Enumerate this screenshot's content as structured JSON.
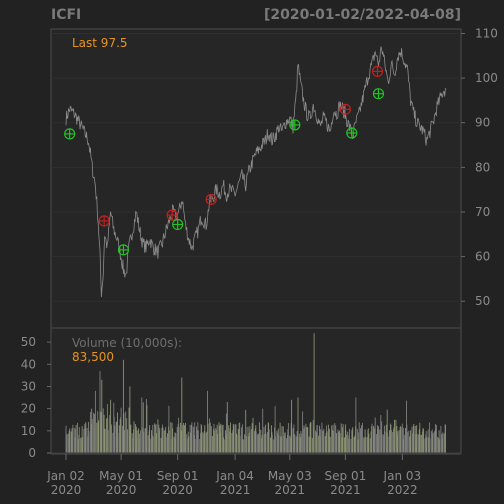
{
  "chart_data": {
    "type": "line",
    "title": "ICFI",
    "date_range": "[2020-01-02/2022-04-08]",
    "last_label": "Last 97.5",
    "price_axis": {
      "ylim": [
        44,
        111
      ],
      "ticks": [
        50,
        60,
        70,
        80,
        90,
        100,
        110
      ]
    },
    "volume_axis": {
      "label": "Volume (10,000s):",
      "last_value": "83,500",
      "ylim": [
        0,
        55
      ],
      "ticks": [
        0,
        10,
        20,
        30,
        40,
        50
      ]
    },
    "x_axis": {
      "start": "2020-01-02",
      "end": "2022-04-08",
      "ticks": [
        {
          "date": "2020-01-02",
          "line1": "Jan 02",
          "line2": "2020"
        },
        {
          "date": "2020-05-01",
          "line1": "May 01",
          "line2": "2020"
        },
        {
          "date": "2020-09-01",
          "line1": "Sep 01",
          "line2": "2020"
        },
        {
          "date": "2021-01-04",
          "line1": "Jan 04",
          "line2": "2021"
        },
        {
          "date": "2021-05-03",
          "line1": "May 03",
          "line2": "2021"
        },
        {
          "date": "2021-09-01",
          "line1": "Sep 01",
          "line2": "2021"
        },
        {
          "date": "2022-01-03",
          "line1": "Jan 03",
          "line2": "2022"
        }
      ]
    },
    "price_series": [
      [
        "2020-01-02",
        91
      ],
      [
        "2020-01-10",
        93
      ],
      [
        "2020-01-20",
        92
      ],
      [
        "2020-01-31",
        90
      ],
      [
        "2020-02-10",
        88
      ],
      [
        "2020-02-20",
        86
      ],
      [
        "2020-02-28",
        80
      ],
      [
        "2020-03-06",
        76
      ],
      [
        "2020-03-12",
        68
      ],
      [
        "2020-03-16",
        60
      ],
      [
        "2020-03-19",
        52
      ],
      [
        "2020-03-23",
        56
      ],
      [
        "2020-03-26",
        65
      ],
      [
        "2020-04-01",
        62
      ],
      [
        "2020-04-08",
        70
      ],
      [
        "2020-04-15",
        66
      ],
      [
        "2020-04-22",
        64
      ],
      [
        "2020-05-01",
        60
      ],
      [
        "2020-05-06",
        57
      ],
      [
        "2020-05-12",
        56
      ],
      [
        "2020-05-18",
        62
      ],
      [
        "2020-05-26",
        66
      ],
      [
        "2020-06-03",
        70
      ],
      [
        "2020-06-10",
        66
      ],
      [
        "2020-06-17",
        63
      ],
      [
        "2020-06-24",
        62
      ],
      [
        "2020-07-02",
        64
      ],
      [
        "2020-07-10",
        62
      ],
      [
        "2020-07-20",
        61
      ],
      [
        "2020-07-30",
        63
      ],
      [
        "2020-08-07",
        66
      ],
      [
        "2020-08-14",
        68
      ],
      [
        "2020-08-21",
        70
      ],
      [
        "2020-08-28",
        69
      ],
      [
        "2020-09-04",
        70
      ],
      [
        "2020-09-11",
        73
      ],
      [
        "2020-09-18",
        67
      ],
      [
        "2020-09-25",
        64
      ],
      [
        "2020-10-02",
        62
      ],
      [
        "2020-10-09",
        64
      ],
      [
        "2020-10-16",
        66
      ],
      [
        "2020-10-23",
        69
      ],
      [
        "2020-11-02",
        67
      ],
      [
        "2020-11-09",
        72
      ],
      [
        "2020-11-16",
        73
      ],
      [
        "2020-11-24",
        75
      ],
      [
        "2020-12-02",
        74
      ],
      [
        "2020-12-09",
        76
      ],
      [
        "2020-12-16",
        74
      ],
      [
        "2020-12-23",
        75
      ],
      [
        "2021-01-04",
        74
      ],
      [
        "2021-01-11",
        76
      ],
      [
        "2021-01-19",
        78
      ],
      [
        "2021-01-27",
        76
      ],
      [
        "2021-02-03",
        79
      ],
      [
        "2021-02-10",
        81
      ],
      [
        "2021-02-18",
        83
      ],
      [
        "2021-02-25",
        84
      ],
      [
        "2021-03-04",
        85
      ],
      [
        "2021-03-11",
        86
      ],
      [
        "2021-03-18",
        88
      ],
      [
        "2021-03-25",
        86
      ],
      [
        "2021-04-01",
        87
      ],
      [
        "2021-04-09",
        89
      ],
      [
        "2021-04-16",
        88
      ],
      [
        "2021-04-23",
        90
      ],
      [
        "2021-05-03",
        91
      ],
      [
        "2021-05-10",
        89
      ],
      [
        "2021-05-17",
        96
      ],
      [
        "2021-05-21",
        103
      ],
      [
        "2021-05-26",
        99
      ],
      [
        "2021-06-02",
        95
      ],
      [
        "2021-06-09",
        92
      ],
      [
        "2021-06-16",
        91
      ],
      [
        "2021-06-23",
        94
      ],
      [
        "2021-06-30",
        92
      ],
      [
        "2021-07-08",
        89
      ],
      [
        "2021-07-15",
        91
      ],
      [
        "2021-07-22",
        90
      ],
      [
        "2021-07-30",
        88
      ],
      [
        "2021-08-06",
        93
      ],
      [
        "2021-08-13",
        92
      ],
      [
        "2021-08-20",
        94
      ],
      [
        "2021-08-27",
        93
      ],
      [
        "2021-09-03",
        91
      ],
      [
        "2021-09-10",
        89
      ],
      [
        "2021-09-17",
        87
      ],
      [
        "2021-09-24",
        90
      ],
      [
        "2021-10-01",
        92
      ],
      [
        "2021-10-08",
        95
      ],
      [
        "2021-10-15",
        98
      ],
      [
        "2021-10-22",
        101
      ],
      [
        "2021-10-29",
        103
      ],
      [
        "2021-11-05",
        106
      ],
      [
        "2021-11-12",
        103
      ],
      [
        "2021-11-19",
        107
      ],
      [
        "2021-11-26",
        103
      ],
      [
        "2021-12-03",
        99
      ],
      [
        "2021-12-10",
        103
      ],
      [
        "2021-12-17",
        101
      ],
      [
        "2021-12-24",
        105
      ],
      [
        "2021-12-31",
        106
      ],
      [
        "2022-01-07",
        104
      ],
      [
        "2022-01-14",
        102
      ],
      [
        "2022-01-21",
        95
      ],
      [
        "2022-01-28",
        92
      ],
      [
        "2022-02-04",
        90
      ],
      [
        "2022-02-11",
        89
      ],
      [
        "2022-02-18",
        88
      ],
      [
        "2022-02-25",
        86
      ],
      [
        "2022-03-04",
        88
      ],
      [
        "2022-03-11",
        90
      ],
      [
        "2022-03-18",
        93
      ],
      [
        "2022-03-25",
        95
      ],
      [
        "2022-04-01",
        97
      ],
      [
        "2022-04-08",
        97.5
      ]
    ],
    "markers": [
      {
        "date": "2020-01-10",
        "value": 87.5,
        "type": "buy"
      },
      {
        "date": "2020-03-25",
        "value": 68.0,
        "type": "sell"
      },
      {
        "date": "2020-05-06",
        "value": 61.5,
        "type": "buy"
      },
      {
        "date": "2020-08-20",
        "value": 69.3,
        "type": "sell"
      },
      {
        "date": "2020-09-01",
        "value": 67.2,
        "type": "buy"
      },
      {
        "date": "2020-11-13",
        "value": 72.8,
        "type": "sell"
      },
      {
        "date": "2021-05-14",
        "value": 89.5,
        "type": "buy"
      },
      {
        "date": "2021-09-01",
        "value": 93.0,
        "type": "sell"
      },
      {
        "date": "2021-09-15",
        "value": 87.7,
        "type": "buy"
      },
      {
        "date": "2021-11-10",
        "value": 101.5,
        "type": "sell"
      },
      {
        "date": "2021-11-12",
        "value": 96.5,
        "type": "buy"
      }
    ],
    "volume_spikes": [
      {
        "date": "2020-02-27",
        "value": 20
      },
      {
        "date": "2020-03-06",
        "value": 28
      },
      {
        "date": "2020-03-16",
        "value": 37
      },
      {
        "date": "2020-03-20",
        "value": 33
      },
      {
        "date": "2020-04-08",
        "value": 24
      },
      {
        "date": "2020-05-06",
        "value": 42
      },
      {
        "date": "2020-05-20",
        "value": 30
      },
      {
        "date": "2020-06-15",
        "value": 25
      },
      {
        "date": "2020-08-11",
        "value": 25
      },
      {
        "date": "2020-09-10",
        "value": 34
      },
      {
        "date": "2020-10-20",
        "value": 27
      },
      {
        "date": "2020-11-05",
        "value": 28
      },
      {
        "date": "2020-12-18",
        "value": 23
      },
      {
        "date": "2021-03-05",
        "value": 20
      },
      {
        "date": "2021-05-07",
        "value": 24
      },
      {
        "date": "2021-05-21",
        "value": 25
      },
      {
        "date": "2021-06-25",
        "value": 54
      },
      {
        "date": "2021-08-10",
        "value": 20
      },
      {
        "date": "2021-09-24",
        "value": 25
      },
      {
        "date": "2021-11-05",
        "value": 16
      },
      {
        "date": "2021-12-17",
        "value": 15
      }
    ]
  }
}
